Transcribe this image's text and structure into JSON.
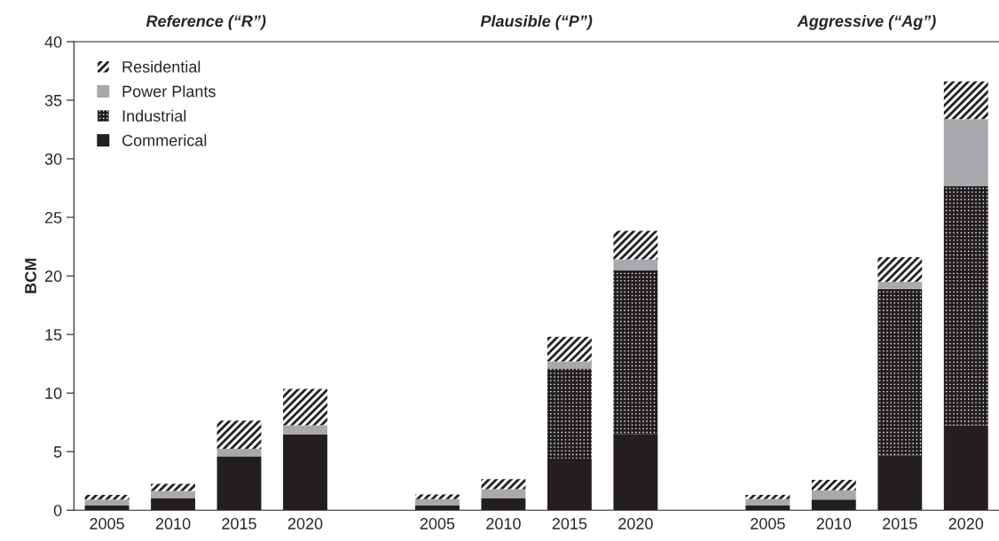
{
  "chart_data": {
    "type": "bar",
    "stacked": true,
    "ylabel": "BCM",
    "annotations": [
      "Reference (“R”)",
      "Plausible (“P”)",
      "Aggressive (“Ag”)"
    ],
    "categories": [
      "2005",
      "2010",
      "2015",
      "2020",
      null,
      "2005",
      "2010",
      "2015",
      "2020",
      null,
      "2005",
      "2010",
      "2015",
      "2020"
    ],
    "series": [
      {
        "name": "Commerical",
        "color": "#231f20",
        "values": [
          0.4,
          1.0,
          4.6,
          6.45,
          null,
          0.4,
          1.0,
          4.4,
          6.5,
          null,
          0.4,
          0.9,
          4.7,
          7.25
        ]
      },
      {
        "name": "Industrial",
        "color": "#231f20",
        "values": [
          0,
          0,
          0,
          0,
          null,
          0,
          0,
          7.7,
          14.0,
          null,
          0,
          0,
          14.2,
          20.4
        ]
      },
      {
        "name": "Power Plants",
        "color": "#a7a9ac",
        "values": [
          0.5,
          0.65,
          0.65,
          0.8,
          null,
          0.55,
          0.8,
          0.6,
          0.9,
          null,
          0.55,
          0.8,
          0.6,
          5.75
        ]
      },
      {
        "name": "Residential",
        "color": "#231f20",
        "values": [
          0.4,
          0.6,
          2.4,
          3.1,
          null,
          0.4,
          0.85,
          2.1,
          2.45,
          null,
          0.35,
          0.9,
          2.1,
          3.2
        ]
      }
    ],
    "ylim": [
      0,
      40
    ],
    "yticks": [
      0,
      5,
      10,
      15,
      20,
      25,
      30,
      35,
      40
    ],
    "legend": "top left",
    "grid": false
  }
}
